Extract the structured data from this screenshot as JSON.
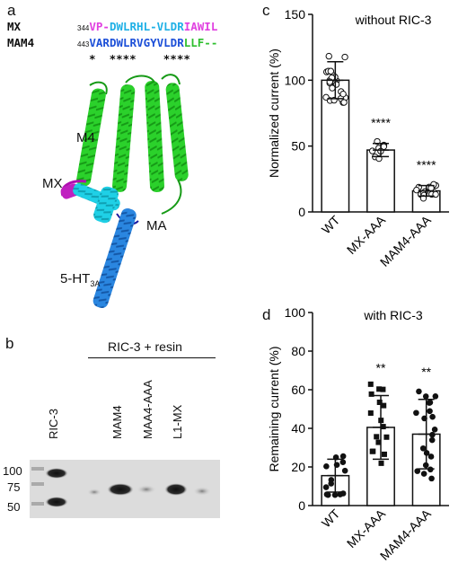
{
  "panel_a": {
    "letter": "a",
    "rows": [
      {
        "name": "MX",
        "start": "344",
        "segments": [
          {
            "text": "VP-",
            "color": "#e040e0"
          },
          {
            "text": "DWLRHL-",
            "color": "#1fb0e6"
          },
          {
            "text": "VLDR",
            "color": "#1fb0e6"
          },
          {
            "text": "IAWIL",
            "color": "#e040e0"
          }
        ]
      },
      {
        "name": "MAM4",
        "start": "443",
        "segments": [
          {
            "text": "VAR",
            "color": "#1c4fd8"
          },
          {
            "text": "DWLRVGY",
            "color": "#1c4fd8"
          },
          {
            "text": "VLDR",
            "color": "#1c4fd8"
          },
          {
            "text": "LLF--",
            "color": "#2fbf2f"
          }
        ]
      }
    ],
    "conservation": "*  ****    ****",
    "labels": {
      "m4": "M4",
      "mx": "MX",
      "ma": "MA",
      "receptor": "5-HT",
      "receptor_sub": "3A"
    }
  },
  "panel_b": {
    "letter": "b",
    "header": "RIC-3 + resin",
    "lanes": [
      "RIC-3",
      "MAM4",
      "MAA4-AAA",
      "L1-MX"
    ],
    "markers": [
      "100",
      "75",
      "50"
    ]
  },
  "panel_c": {
    "letter": "c",
    "chart_data": {
      "type": "bar",
      "title": "without RIC-3",
      "ylabel": "Normalized current (%)",
      "categories": [
        "WT",
        "MX-AAA",
        "MAM4-AAA"
      ],
      "values": [
        100,
        47,
        16
      ],
      "errors": [
        14,
        5,
        4
      ],
      "significance": [
        "",
        "****",
        "****"
      ],
      "ylim": [
        0,
        150
      ],
      "yticks": [
        0,
        50,
        100,
        150
      ]
    }
  },
  "panel_d": {
    "letter": "d",
    "chart_data": {
      "type": "bar",
      "title": "with RIC-3",
      "ylabel": "Remaining current (%)",
      "categories": [
        "WT",
        "MX-AAA",
        "MAM4-AAA"
      ],
      "values": [
        15.5,
        40.5,
        37
      ],
      "errors": [
        8.5,
        16.5,
        18
      ],
      "significance": [
        "",
        "**",
        "**"
      ],
      "ylim": [
        0,
        100
      ],
      "yticks": [
        0,
        20,
        40,
        60,
        80,
        100
      ]
    }
  },
  "colors": {
    "green": "#2bd12b",
    "cyan": "#1fd0e6",
    "blue": "#1a78d6",
    "magenta": "#b010b0",
    "navy": "#1a1aa0"
  }
}
